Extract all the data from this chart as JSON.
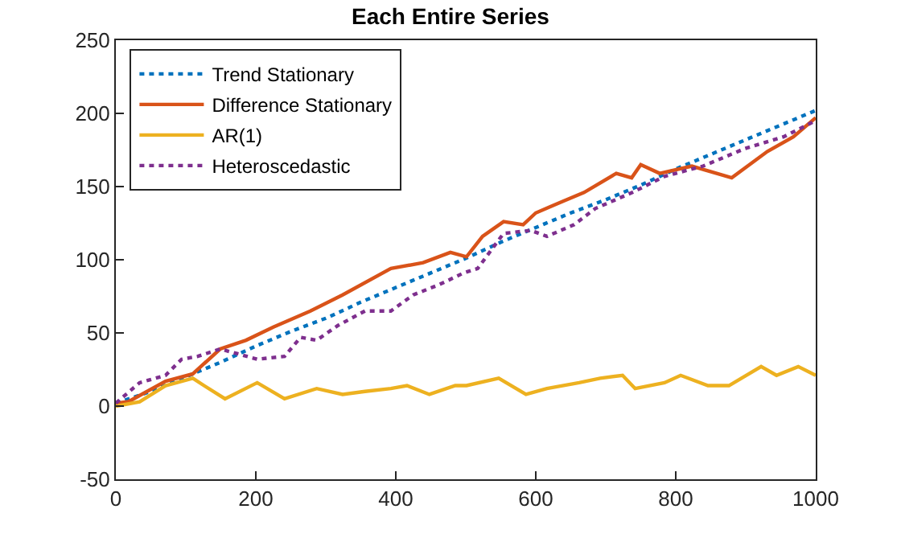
{
  "chart_data": {
    "type": "line",
    "title": "Each Entire Series",
    "xlim": [
      0,
      1000
    ],
    "xticks": [
      0,
      200,
      400,
      600,
      800,
      1000
    ],
    "ylim": [
      -50,
      250
    ],
    "yticks": [
      -50,
      0,
      50,
      100,
      150,
      200,
      250
    ],
    "legend": "top left",
    "marker": "none",
    "series": [
      {
        "name": "Trend Stationary",
        "color": "#0072bd",
        "line_style": "dotted",
        "x": [
          0,
          50,
          100,
          150,
          200,
          250,
          300,
          350,
          400,
          450,
          500,
          550,
          600,
          650,
          700,
          750,
          800,
          850,
          900,
          950,
          1000
        ],
        "values": [
          2,
          10,
          20,
          30,
          41,
          51,
          60,
          71,
          81,
          91,
          101,
          112,
          122,
          132,
          141,
          151,
          162,
          172,
          182,
          192,
          202
        ]
      },
      {
        "name": "Difference Stationary",
        "color": "#d95319",
        "line_style": "solid",
        "x": [
          0,
          18,
          71,
          110,
          149,
          186,
          225,
          278,
          324,
          393,
          439,
          478,
          501,
          524,
          554,
          582,
          600,
          639,
          669,
          715,
          737,
          750,
          777,
          823,
          880,
          931,
          968,
          1000
        ],
        "values": [
          2,
          3,
          17,
          22,
          39,
          45,
          54,
          65,
          76,
          94,
          98,
          105,
          102,
          116,
          126,
          124,
          132,
          140,
          146,
          159,
          156,
          165,
          159,
          164,
          156,
          174,
          184,
          197
        ]
      },
      {
        "name": "AR(1)",
        "color": "#edb120",
        "line_style": "solid",
        "x": [
          0,
          34,
          71,
          110,
          126,
          156,
          202,
          241,
          287,
          324,
          356,
          393,
          416,
          448,
          485,
          501,
          547,
          586,
          616,
          662,
          692,
          724,
          742,
          784,
          807,
          846,
          876,
          922,
          944,
          975,
          1000
        ],
        "values": [
          0,
          3,
          14,
          19,
          14,
          5,
          16,
          5,
          12,
          8,
          10,
          12,
          14,
          8,
          14,
          14,
          19,
          8,
          12,
          16,
          19,
          21,
          12,
          16,
          21,
          14,
          14,
          27,
          21,
          27,
          21
        ]
      },
      {
        "name": "Heteroscedastic",
        "color": "#7e2f8e",
        "line_style": "dotted",
        "x": [
          0,
          34,
          71,
          94,
          117,
          149,
          172,
          202,
          241,
          264,
          287,
          317,
          356,
          393,
          425,
          462,
          497,
          517,
          540,
          554,
          593,
          616,
          655,
          685,
          738,
          784,
          839,
          899,
          954,
          1000
        ],
        "values": [
          2,
          16,
          21,
          32,
          34,
          39,
          36,
          32,
          34,
          47,
          45,
          55,
          65,
          65,
          76,
          83,
          91,
          94,
          109,
          118,
          120,
          116,
          124,
          135,
          146,
          157,
          164,
          176,
          184,
          195
        ]
      }
    ]
  }
}
